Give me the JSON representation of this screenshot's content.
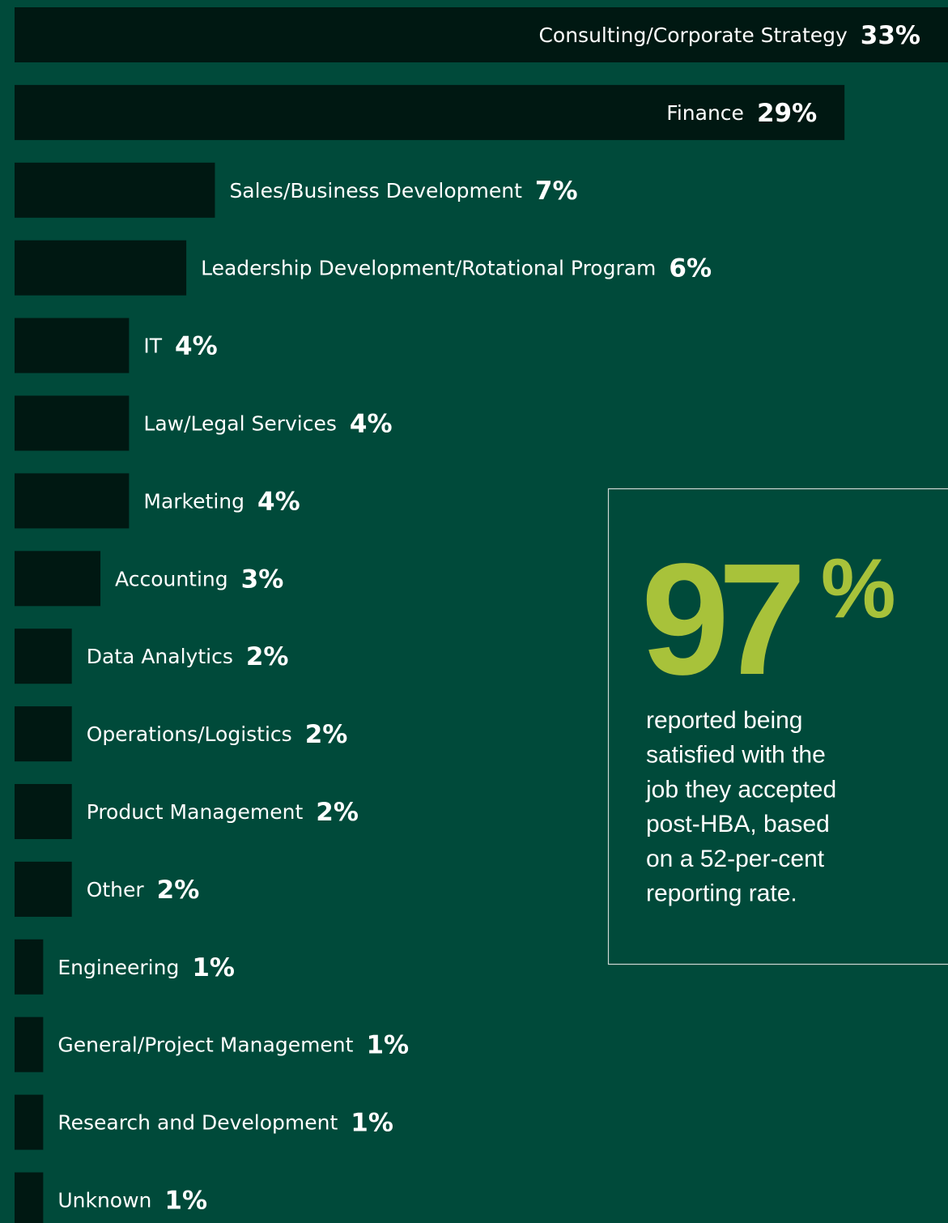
{
  "chart_data": {
    "type": "bar",
    "orientation": "horizontal",
    "categories": [
      "Consulting/Corporate Strategy",
      "Finance",
      "Sales/Business Development",
      "Leadership Development/Rotational Program",
      "IT",
      "Law/Legal Services",
      "Marketing",
      "Accounting",
      "Data Analytics",
      "Operations/Logistics",
      "Product Management",
      "Other",
      "Engineering",
      "General/Project Management",
      "Research and Development",
      "Unknown"
    ],
    "values": [
      33,
      29,
      7,
      6,
      4,
      4,
      4,
      3,
      2,
      2,
      2,
      2,
      1,
      1,
      1,
      1
    ],
    "value_labels": [
      "33%",
      "29%",
      "7%",
      "6%",
      "4%",
      "4%",
      "4%",
      "3%",
      "2%",
      "2%",
      "2%",
      "2%",
      "1%",
      "1%",
      "1%",
      "1%"
    ],
    "color": "#001812"
  },
  "callout": {
    "number": "97",
    "unit": "%",
    "text_lines": [
      "reported being",
      "satisfied with the",
      "job they accepted",
      "post-HBA, based",
      "on a 52-per-cent",
      "reporting rate."
    ]
  }
}
